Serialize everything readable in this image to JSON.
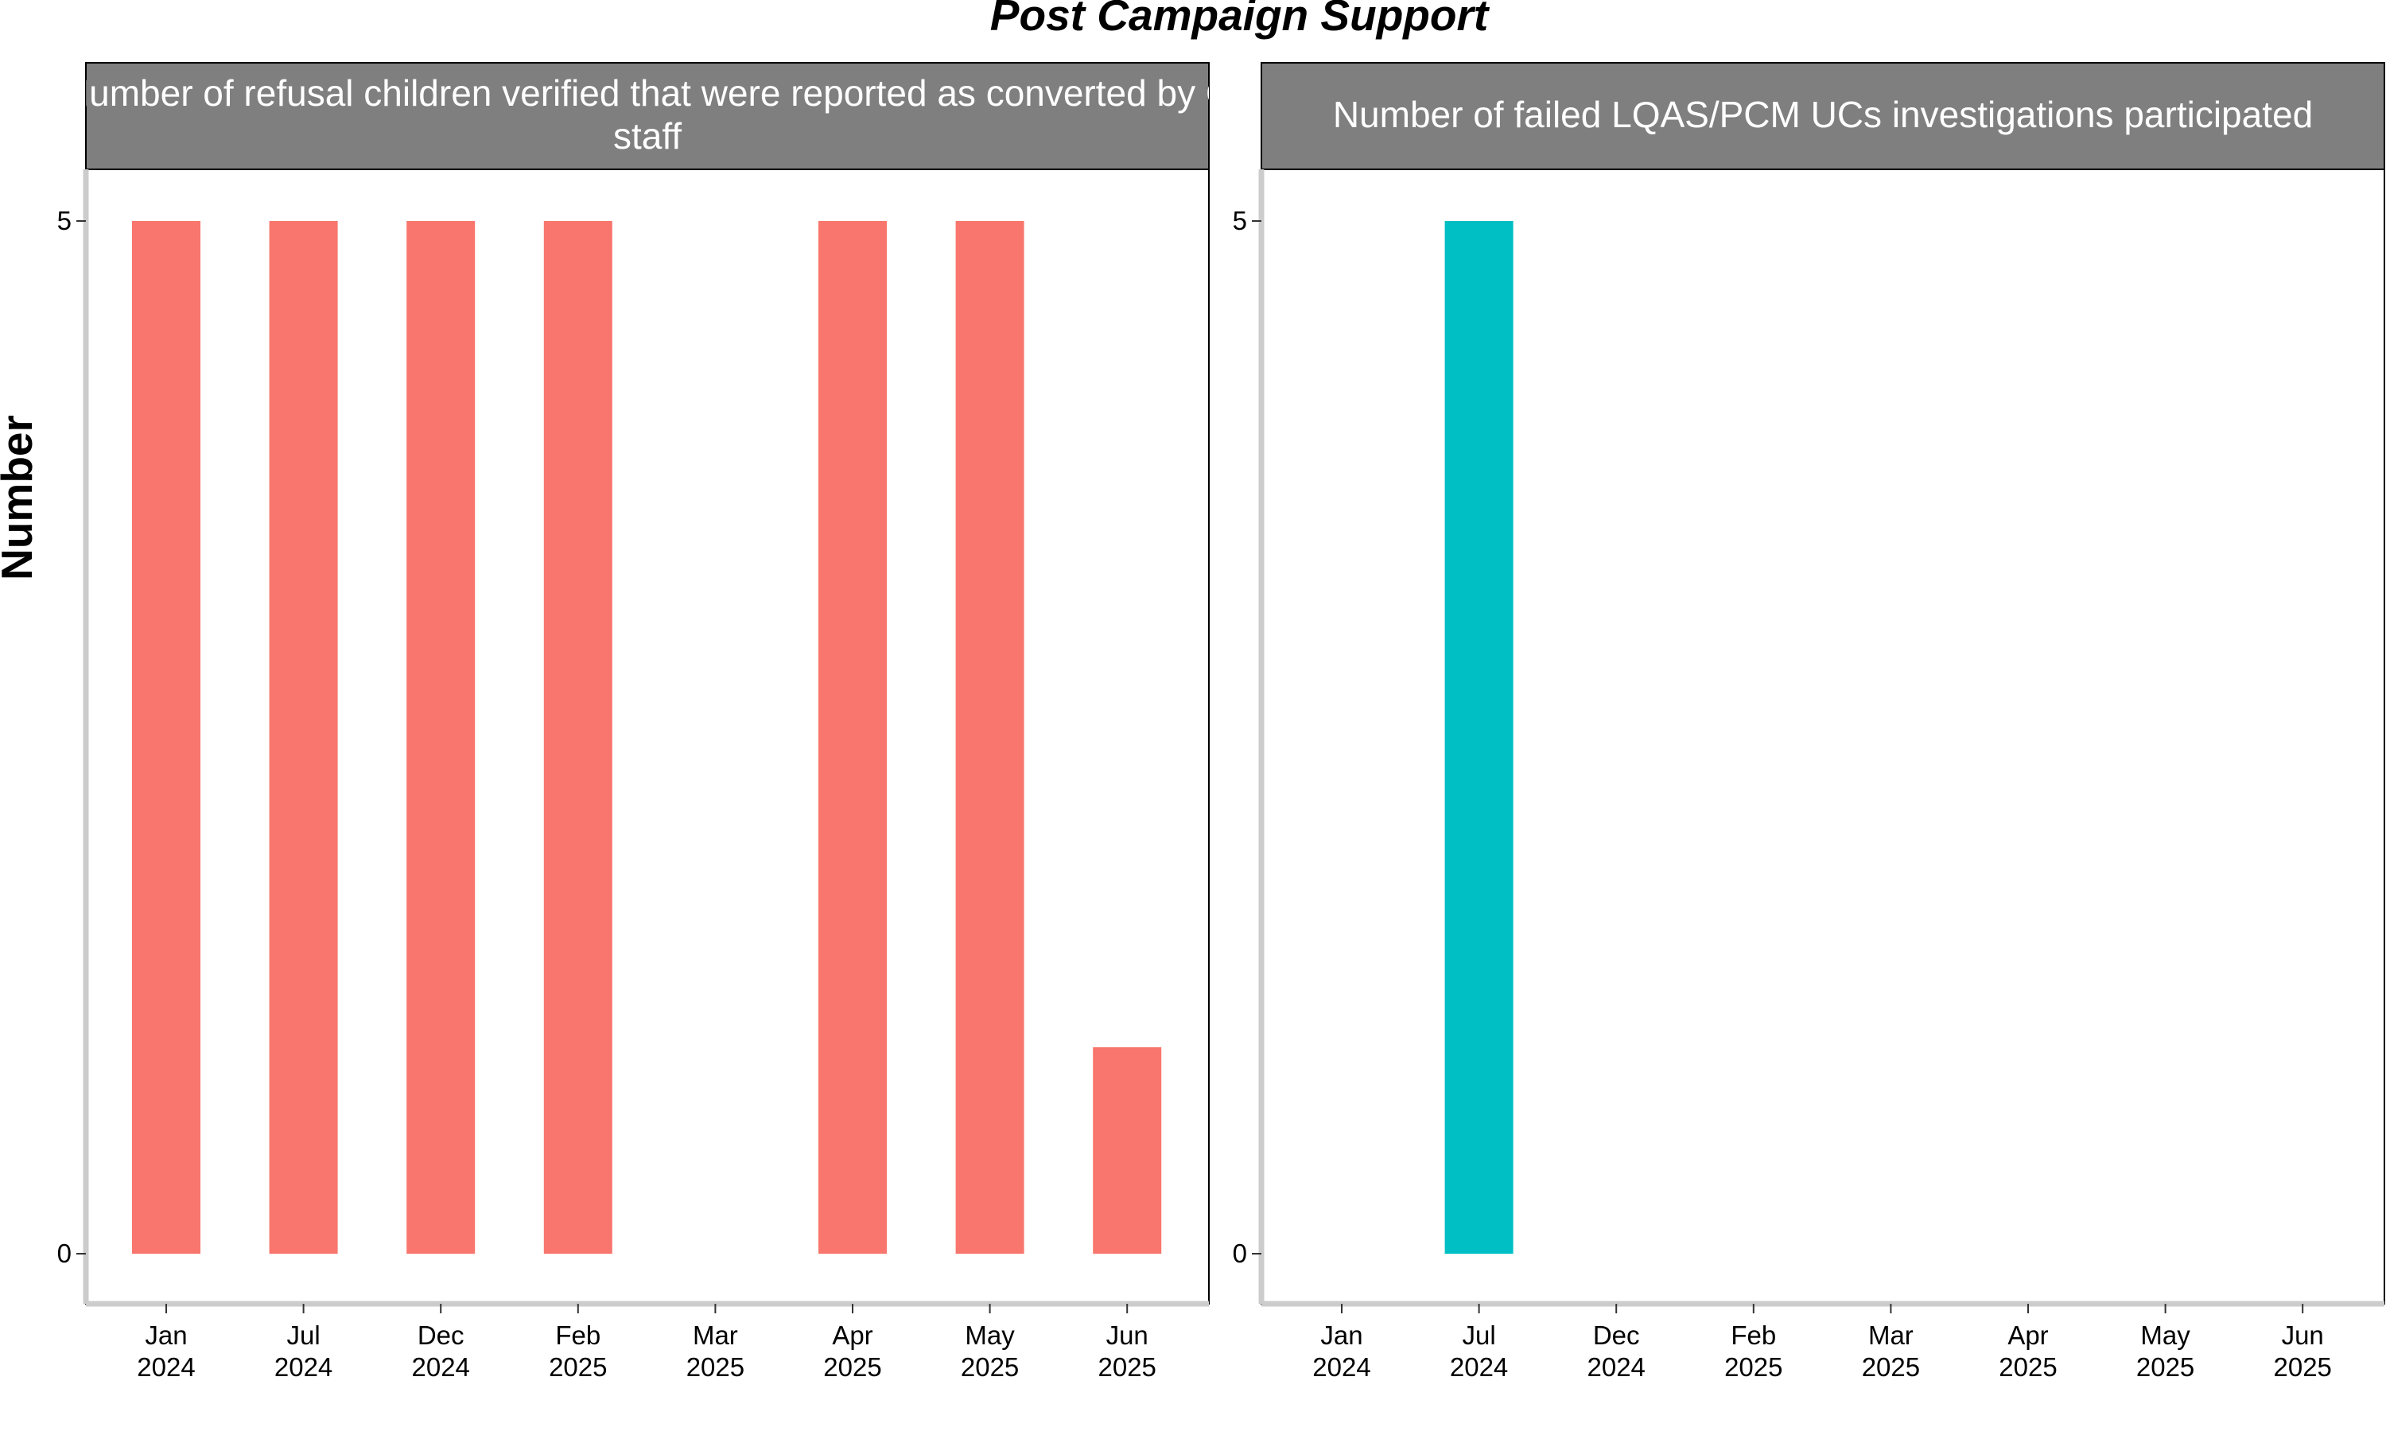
{
  "chart_data": {
    "type": "bar",
    "title": "Post Campaign Support",
    "ylabel": "Number",
    "xlabel": "",
    "ylim": [
      0,
      5
    ],
    "yticks": [
      "0",
      "5"
    ],
    "categories": [
      "Jan 2024",
      "Jul 2024",
      "Dec 2024",
      "Feb 2025",
      "Mar 2025",
      "Apr 2025",
      "May 2025",
      "Jun 2025"
    ],
    "tick_lines": [
      [
        "Jan",
        "2024"
      ],
      [
        "Jul",
        "2024"
      ],
      [
        "Dec",
        "2024"
      ],
      [
        "Feb",
        "2025"
      ],
      [
        "Mar",
        "2025"
      ],
      [
        "Apr",
        "2025"
      ],
      [
        "May",
        "2025"
      ],
      [
        "Jun",
        "2025"
      ]
    ],
    "grid": false,
    "legend": "none",
    "panels": [
      {
        "strip_lines": [
          "Number of refusal children verified that were reported as converted by C",
          "staff"
        ],
        "color": "#F8766D",
        "values": [
          5,
          5,
          5,
          5,
          null,
          5,
          5,
          1
        ]
      },
      {
        "strip_lines": [
          "Number of failed LQAS/PCM UCs investigations participated"
        ],
        "color": "#00BFC4",
        "values": [
          null,
          5,
          null,
          null,
          null,
          null,
          null,
          null
        ]
      }
    ]
  }
}
